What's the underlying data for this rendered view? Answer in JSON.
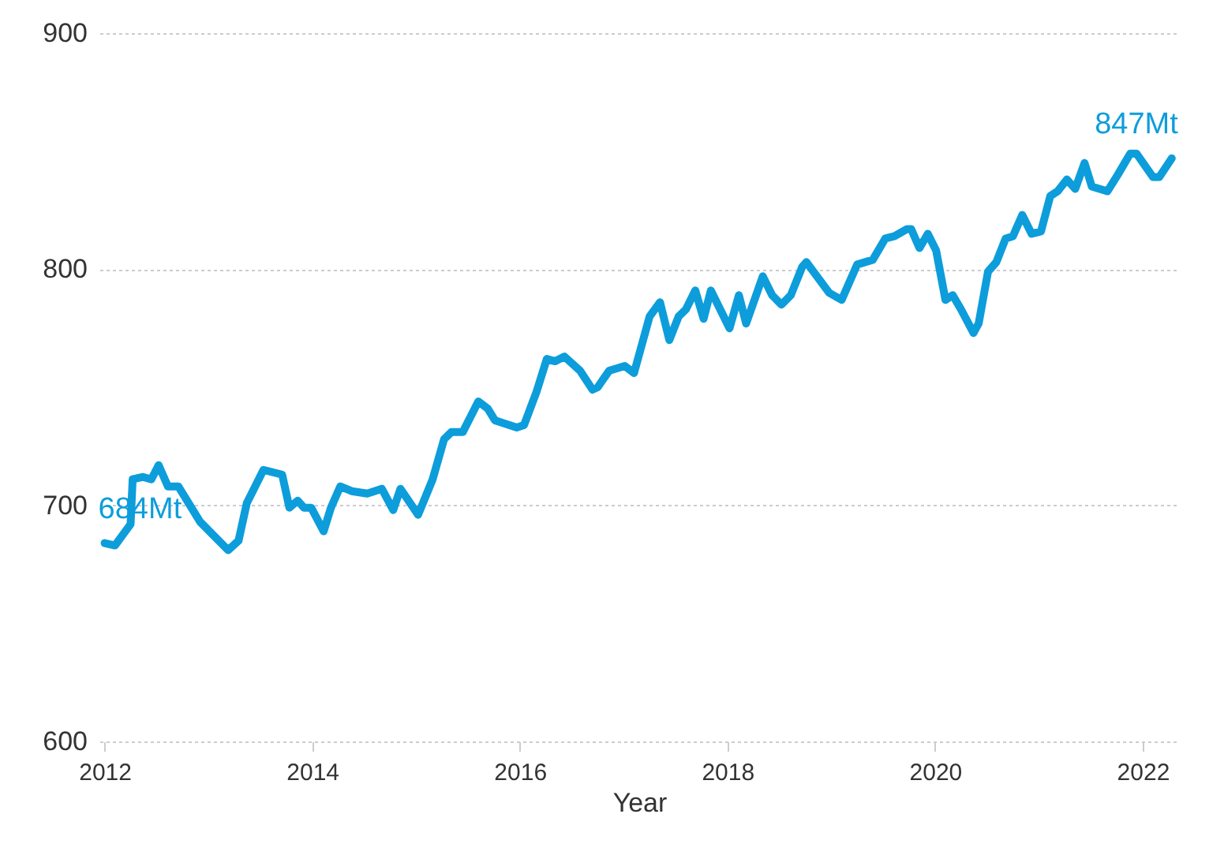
{
  "chart_data": {
    "type": "line",
    "xlabel": "Year",
    "x": [
      2012.0,
      2012.1,
      2012.25,
      2012.27,
      2012.37,
      2012.45,
      2012.52,
      2012.61,
      2012.71,
      2012.92,
      2013.19,
      2013.29,
      2013.37,
      2013.53,
      2013.71,
      2013.78,
      2013.86,
      2013.92,
      2013.99,
      2014.11,
      2014.18,
      2014.27,
      2014.38,
      2014.53,
      2014.67,
      2014.78,
      2014.85,
      2015.02,
      2015.16,
      2015.27,
      2015.34,
      2015.45,
      2015.6,
      2015.69,
      2015.76,
      2015.97,
      2016.04,
      2016.16,
      2016.26,
      2016.34,
      2016.43,
      2016.58,
      2016.7,
      2016.75,
      2016.86,
      2017.01,
      2017.1,
      2017.25,
      2017.35,
      2017.44,
      2017.53,
      2017.6,
      2017.69,
      2017.77,
      2017.84,
      2018.02,
      2018.11,
      2018.18,
      2018.34,
      2018.43,
      2018.52,
      2018.61,
      2018.72,
      2018.76,
      2018.98,
      2019.1,
      2019.25,
      2019.4,
      2019.52,
      2019.61,
      2019.73,
      2019.77,
      2019.85,
      2019.93,
      2020.01,
      2020.1,
      2020.17,
      2020.25,
      2020.37,
      2020.42,
      2020.51,
      2020.59,
      2020.68,
      2020.75,
      2020.84,
      2020.93,
      2021.02,
      2021.11,
      2021.18,
      2021.27,
      2021.35,
      2021.44,
      2021.51,
      2021.66,
      2021.76,
      2021.88,
      2021.94,
      2022.1,
      2022.16,
      2022.28
    ],
    "series": [
      {
        "color": "#0d9ddb",
        "values": [
          684,
          683,
          692,
          711,
          712,
          711,
          717,
          708,
          708,
          693,
          681,
          685,
          701,
          715,
          713,
          699,
          702,
          699,
          699,
          689,
          699,
          708,
          706,
          705,
          707,
          698,
          707,
          696,
          711,
          728,
          731,
          731,
          744,
          741,
          736,
          733,
          734,
          748,
          762,
          761,
          763,
          757,
          749,
          750,
          757,
          759,
          756,
          780,
          786,
          770,
          780,
          783,
          791,
          779,
          791,
          775,
          789,
          777,
          797,
          789,
          785,
          789,
          801,
          803,
          790,
          787,
          802,
          804,
          813,
          814,
          817,
          817,
          809,
          815,
          808,
          787,
          789,
          783,
          773,
          777,
          799,
          803,
          813,
          814,
          823,
          815,
          816,
          831,
          833,
          838,
          834,
          845,
          835,
          833,
          840,
          849,
          849,
          839,
          839,
          847
        ]
      }
    ],
    "xlim": [
      2011.95,
      2022.35
    ],
    "xticks": [
      2012,
      2014,
      2016,
      2018,
      2020,
      2022
    ],
    "ylim": [
      600,
      900
    ],
    "yticks": [
      600,
      700,
      800,
      900
    ],
    "grid": "y",
    "marker": "none",
    "line_style": "solid",
    "annotations": [
      {
        "text": "684Mt",
        "x": 2012.0,
        "y": 684
      },
      {
        "text": "847Mt",
        "x": 2022.28,
        "y": 847
      }
    ]
  }
}
